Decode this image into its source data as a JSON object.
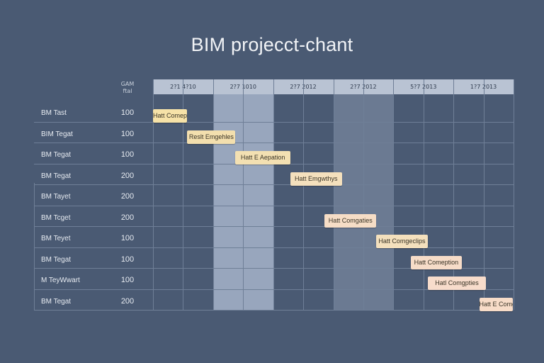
{
  "chart_data": {
    "type": "gantt",
    "title": "BIM projecct-chant",
    "corner_label": [
      "GAM",
      "ftal"
    ],
    "period_labels": [
      "2?1 4?10",
      "2?7 1010",
      "2?7 2012",
      "2?7 2012",
      "5?7 2013",
      "1?7 2013"
    ],
    "rows": [
      {
        "name": "BM Tast",
        "value": "100",
        "task": "Hatt Comeption",
        "start": 0.0,
        "end": 1.0,
        "color": "#f6e2a8"
      },
      {
        "name": "BIM Tegat",
        "value": "100",
        "task": "Reslt Emgehles",
        "start": 1.0,
        "end": 2.4,
        "color": "#f3dfae"
      },
      {
        "name": "BM Tegat",
        "value": "100",
        "task": "Hatt E Aepation",
        "start": 2.4,
        "end": 4.0,
        "color": "#f3e0b2"
      },
      {
        "name": "BM Tegat",
        "value": "200",
        "task": "Hatt Emgwthys",
        "start": 4.0,
        "end": 5.5,
        "color": "#f4e0bd"
      },
      {
        "name": "BM Tayet",
        "value": "200",
        "task": "",
        "start": null,
        "end": null,
        "color": ""
      },
      {
        "name": "BM Tcget",
        "value": "200",
        "task": "Hatt Comgaties",
        "start": 5.0,
        "end": 6.5,
        "color": "#f6ddc6"
      },
      {
        "name": "BM Teyet",
        "value": "100",
        "task": "Hatt Comgeclips",
        "start": 6.5,
        "end": 8.0,
        "color": "#f4e0bd"
      },
      {
        "name": "BM Tegat",
        "value": "100",
        "task": "Hatt Comeption",
        "start": 7.5,
        "end": 9.0,
        "color": "#f6dcc8"
      },
      {
        "name": "M TeyWwart",
        "value": "100",
        "task": "Hatl Comgpties",
        "start": 8.0,
        "end": 9.7,
        "color": "#f7dccb"
      },
      {
        "name": "BM Tegat",
        "value": "200",
        "task": "Hatt E Comgties",
        "start": 9.5,
        "end": 10.5,
        "color": "#f7dcc8"
      }
    ]
  }
}
